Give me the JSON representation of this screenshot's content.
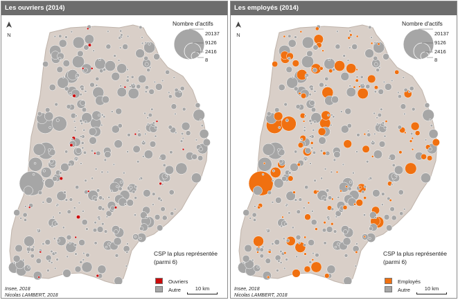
{
  "colors": {
    "territory": "#d9cfc8",
    "territory_border": "#bfb3aa",
    "autre": "#a6a6a6",
    "ouvriers": "#cc0a0a",
    "employes": "#f07010"
  },
  "icons": {
    "north": "north-arrow-icon"
  },
  "panels": [
    {
      "title": "Les ouvriers (2014)",
      "north_label": "N",
      "size_legend": {
        "title": "Nombre d'actifs",
        "values": [
          "20137",
          "9126",
          "2416",
          "8"
        ]
      },
      "category_legend": {
        "title": "CSP la plus représentée (parmi 6)",
        "items": [
          {
            "label": "Ouvriers"
          },
          {
            "label": "Autre"
          }
        ]
      },
      "source_lines": [
        "Insee, 2018",
        "Nicolas LAMBERT, 2018"
      ],
      "scale_label": "10 km"
    },
    {
      "title": "Les employés (2014)",
      "north_label": "N",
      "size_legend": {
        "title": "Nombre d'actifs",
        "values": [
          "20137",
          "9126",
          "2416",
          "8"
        ]
      },
      "category_legend": {
        "title": "CSP la plus représentée (parmi 6)",
        "items": [
          {
            "label": "Employés"
          },
          {
            "label": "Autre"
          }
        ]
      },
      "source_lines": [
        "Insee, 2018",
        "Nicolas LAMBERT, 2018"
      ],
      "scale_label": "10 km"
    }
  ]
}
